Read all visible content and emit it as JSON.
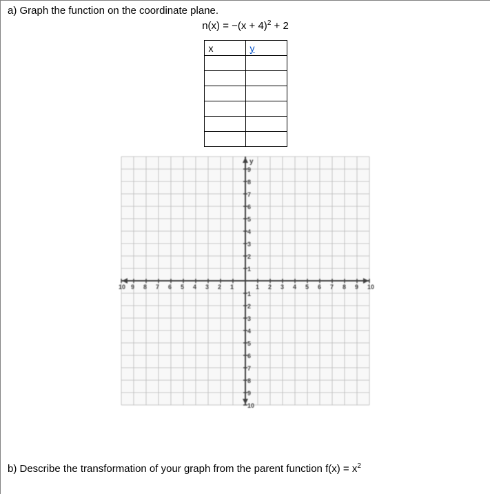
{
  "promptA": "a) Graph the function on the coordinate plane.",
  "equation_prefix": "n(x) = −(x + 4)",
  "equation_exp": "2",
  "equation_suffix": " + 2",
  "table": {
    "header_x": "x",
    "header_y": "y",
    "rows": 6
  },
  "graph": {
    "size": 360,
    "range": 10,
    "grid_color": "#b8b8b8",
    "axis_color": "#404040",
    "bg": "#f8f8f8",
    "label_font": "10px Arial",
    "label_color": "#404040",
    "y_top_label": "y",
    "yticks_pos": [
      9,
      8,
      7,
      6,
      5,
      4,
      3,
      2,
      1
    ],
    "yticks_neg": [
      1,
      2,
      3,
      4,
      5,
      6,
      7,
      8,
      9,
      10
    ],
    "xticks_pos": [
      1,
      2,
      3,
      4,
      5,
      6,
      7,
      8,
      9,
      10
    ],
    "xticks_neg": [
      10,
      9,
      8,
      7,
      6,
      5,
      4,
      3,
      2,
      1
    ]
  },
  "promptB_prefix": "b) Describe the transformation of your graph from the parent function f(x) = x",
  "promptB_exp": "2"
}
